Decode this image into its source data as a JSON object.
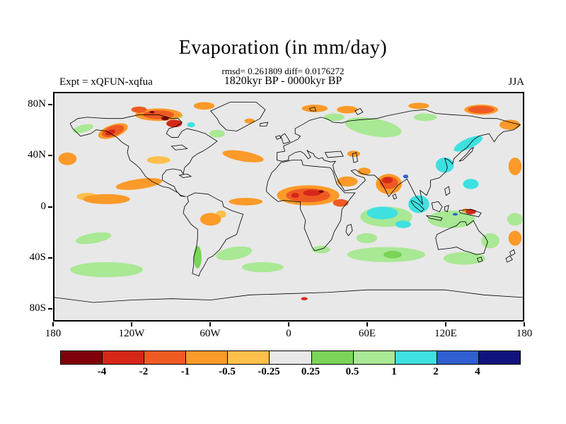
{
  "chart_data": {
    "type": "heatmap",
    "title": "Evaporation (in mm/day)",
    "stats_line": "rmsd= 0.261809 diff= 0.0176272",
    "period_line": "1820kyr BP - 0000kyr BP",
    "experiment_label": "Expt = xQFUN-xqfua",
    "season_label": "JJA",
    "x_axis": {
      "ticks": [
        "180",
        "120W",
        "60W",
        "0",
        "60E",
        "120E",
        "180"
      ],
      "lon_values": [
        -180,
        -120,
        -60,
        0,
        60,
        120,
        180
      ],
      "range": [
        -180,
        180
      ]
    },
    "y_axis": {
      "ticks": [
        "80N",
        "40N",
        "0",
        "40S",
        "80S"
      ],
      "lat_values": [
        80,
        40,
        0,
        -40,
        -80
      ],
      "range": [
        -90,
        90
      ]
    },
    "colorbar": {
      "levels": [
        "-4",
        "-2",
        "-1",
        "-0.5",
        "-0.25",
        "0.25",
        "0.5",
        "1",
        "2",
        "4"
      ],
      "colors": [
        "#7E0009",
        "#D62718",
        "#EF5A23",
        "#FB9A29",
        "#FDC04B",
        "#E8E8E8",
        "#79D457",
        "#A9E894",
        "#3FE0E0",
        "#2F5FD0",
        "#12127E"
      ],
      "units": "mm/day"
    },
    "background_color": "#E8E8E8",
    "anomaly_blobs": [
      [
        65,
        63,
        22,
        7,
        10,
        7
      ],
      [
        105,
        71,
        9,
        3,
        0,
        7
      ],
      [
        35,
        71,
        8,
        3,
        0,
        7
      ],
      [
        -158,
        62,
        8,
        3,
        -15,
        7
      ],
      [
        -55,
        58,
        6,
        3,
        0,
        7
      ],
      [
        75,
        -8,
        20,
        8,
        0,
        7
      ],
      [
        -42,
        -37,
        14,
        5,
        -10,
        7
      ],
      [
        -20,
        -48,
        16,
        4,
        0,
        7
      ],
      [
        75,
        -38,
        30,
        6,
        0,
        7
      ],
      [
        135,
        -41,
        16,
        5,
        0,
        7
      ],
      [
        -140,
        -50,
        28,
        6,
        0,
        7
      ],
      [
        -150,
        -25,
        14,
        4,
        -10,
        7
      ],
      [
        125,
        -10,
        18,
        7,
        0,
        7
      ],
      [
        155,
        -27,
        7,
        6,
        0,
        7
      ],
      [
        174,
        -10,
        6,
        5,
        0,
        7
      ],
      [
        60,
        -25,
        8,
        4,
        0,
        7
      ],
      [
        25,
        -34,
        7,
        3,
        0,
        7
      ],
      [
        -85,
        72,
        4,
        2,
        0,
        7
      ],
      [
        -70,
        -40,
        3,
        9,
        0,
        6
      ],
      [
        80,
        -38,
        7,
        3,
        0,
        6
      ],
      [
        72,
        -5,
        12,
        5,
        0,
        8
      ],
      [
        100,
        2,
        8,
        7,
        0,
        8
      ],
      [
        138,
        50,
        12,
        4,
        -25,
        8
      ],
      [
        120,
        33,
        7,
        6,
        0,
        8
      ],
      [
        88,
        -14,
        6,
        3,
        0,
        8
      ],
      [
        140,
        18,
        6,
        4,
        0,
        8
      ],
      [
        -75,
        65,
        3,
        2,
        0,
        8
      ],
      [
        -100,
        37,
        9,
        3,
        0,
        4
      ],
      [
        -155,
        8,
        8,
        3,
        0,
        4
      ],
      [
        -52,
        -6,
        4,
        3,
        0,
        4
      ],
      [
        -100,
        73,
        18,
        5,
        0,
        3
      ],
      [
        -65,
        80,
        8,
        3,
        0,
        3
      ],
      [
        -135,
        60,
        12,
        5,
        -20,
        3
      ],
      [
        20,
        78,
        10,
        3,
        0,
        3
      ],
      [
        45,
        77,
        8,
        3,
        0,
        3
      ],
      [
        100,
        80,
        8,
        2.5,
        0,
        3
      ],
      [
        148,
        77,
        13,
        4,
        0,
        3
      ],
      [
        170,
        65,
        8,
        4,
        0,
        3
      ],
      [
        -170,
        38,
        7,
        5,
        0,
        3
      ],
      [
        -115,
        18,
        18,
        4,
        -8,
        3
      ],
      [
        -140,
        6,
        18,
        4,
        0,
        3
      ],
      [
        -35,
        40,
        16,
        4,
        10,
        3
      ],
      [
        -33,
        4,
        13,
        3,
        0,
        3
      ],
      [
        -60,
        -10,
        8,
        5,
        0,
        3
      ],
      [
        15,
        9,
        24,
        8,
        0,
        3
      ],
      [
        45,
        20,
        8,
        4,
        0,
        3
      ],
      [
        58,
        28,
        5,
        3,
        0,
        3
      ],
      [
        77,
        18,
        10,
        8,
        0,
        3
      ],
      [
        174,
        32,
        5,
        7,
        0,
        3
      ],
      [
        174,
        -25,
        5,
        6,
        0,
        3
      ],
      [
        136,
        -3,
        3,
        1.5,
        0,
        3
      ],
      [
        50,
        42,
        5,
        2.5,
        0,
        3
      ],
      [
        -30,
        68,
        4,
        2,
        0,
        3
      ],
      [
        -100,
        73,
        12,
        3.5,
        0,
        2
      ],
      [
        -115,
        77,
        6,
        2.5,
        0,
        2
      ],
      [
        -135,
        60,
        9,
        4,
        -20,
        2
      ],
      [
        148,
        77,
        10,
        3,
        0,
        2
      ],
      [
        15,
        9,
        17,
        5.5,
        0,
        2
      ],
      [
        40,
        3,
        6,
        3,
        0,
        2
      ],
      [
        77,
        19,
        7,
        5,
        0,
        2
      ],
      [
        -88,
        66,
        6,
        3,
        0,
        1
      ],
      [
        -137,
        59,
        4,
        2,
        -20,
        1
      ],
      [
        18,
        11,
        7,
        2.5,
        0,
        1
      ],
      [
        5,
        9,
        3,
        2,
        0,
        1
      ],
      [
        76,
        21,
        4,
        2.5,
        0,
        1
      ],
      [
        140,
        -4,
        4,
        2,
        0,
        1
      ],
      [
        12,
        -73,
        2.5,
        1.2,
        0,
        1
      ],
      [
        -95,
        70,
        3,
        1.5,
        0,
        0
      ],
      [
        -105,
        75,
        2,
        1,
        0,
        0
      ],
      [
        25,
        12,
        2,
        1,
        0,
        0
      ],
      [
        90,
        24,
        2,
        1.5,
        0,
        9
      ],
      [
        128,
        -6,
        2,
        1,
        0,
        9
      ]
    ],
    "coastlines": [
      "M24,48 L36,40 L50,38 L80,40 L104,40 L130,34 L160,34 L180,40 L190,40 L196,46 L188,52 L176,56 L172,64 L180,70 L190,70 L196,60 L204,56 L220,60 L232,64 L250,76 L240,84 L228,92 L220,96 L212,102 L208,110 L200,118 L198,128 L194,122 L182,120 L172,122 L166,130 L166,138 L176,144 L184,148 L188,156 L194,162 L202,164 L194,163 L190,158 L176,150 L166,148 L150,140 L140,132 L132,120 L126,114 L116,106 L112,94 L114,84 L104,78 L96,70 L80,60 L64,58 L56,64 L40,68 L28,56 Z",
      "M240,28 L270,14 L310,14 L324,26 L316,40 L280,60 L264,58 L254,48 L250,40 Z",
      "M204,164 L216,158 L236,160 L250,168 L258,172 L260,180 L272,186 L290,192 L286,204 L280,224 L264,232 L254,248 L244,258 L236,262 L230,274 L224,284 L222,290 L212,286 L214,272 L214,260 L218,246 L220,230 L220,216 L210,208 L202,196 L198,190 L200,180 L206,172 Z",
      "M348,110 L366,106 L380,106 L382,114 L400,116 L424,118 L428,124 L434,144 L446,158 L462,158 L442,184 L440,202 L430,220 L426,232 L414,246 L400,250 L396,244 L388,224 L384,214 L386,202 L378,184 L378,172 L372,172 L352,170 L344,172 L334,164 L326,156 L326,150 L328,140 L334,126 L340,120 Z",
      "M342,106 L342,94 L354,92 L352,84 L362,79 L374,73 L378,68 L370,64 L370,56 L384,48 L392,43 L410,38 L420,41 L428,46 L442,47 L452,44 L470,42 L496,40 L510,36 L548,28 L570,26 L586,32 L610,34 L640,36 L660,40 L680,40 L700,46 L716,50 L706,58 L690,61 L682,68 L676,77 L668,64 L652,68 L644,74 L634,86 L624,94 L614,104 L612,112 L606,106 L600,103 L604,118 L602,124 L592,134 L578,138 L578,148 L572,162 L562,154 L566,176 L556,164 L548,148 L542,136 L536,140 L528,146 L520,156 L514,164 L506,148 L500,138 L492,130 L482,130 L472,127 L462,121 L456,123 L464,130 L470,132 L476,134 L478,138 L468,148 L464,152 L450,154 L446,155 L436,138 L430,124 L428,114 L432,108 L424,109 L414,106 L412,102 L406,104 L400,100 L398,96 L390,92 L388,90 L392,98 L394,101 L390,104 L384,96 L378,92 L370,94 L360,100 L360,106 L350,108 Z",
      "M352,80 L362,77 L358,70 L354,64 L348,68 L350,74 Z",
      "M342,73 L348,71 L346,67 L340,69 Z",
      "M316,48 L328,46 L326,52 L316,52 Z",
      "M622,108 L626,104 L634,96 L640,88 L644,86 L642,92 L634,100 L628,106 Z",
      "M450,210 L456,208 L458,218 L452,226 L448,220 Z",
      "M550,170 L560,176 L568,184 L564,188 L554,180 L548,172 Z",
      "M572,194 L588,196 L596,198 L594,202 L576,198 Z",
      "M580,174 L590,172 L596,180 L592,188 L582,184 Z",
      "M600,180 L606,178 L604,188 L600,186 Z",
      "M622,186 L640,184 L656,190 L652,196 L634,192 L624,190 Z",
      "M600,152 L606,148 L608,158 L602,162 Z",
      "M586,230 L588,224 L604,216 L618,210 L624,204 L632,204 L634,210 L644,202 L652,218 L662,228 L666,236 L660,254 L648,256 L638,252 L630,250 L618,244 L608,246 L590,248 Z",
      "M650,262 L656,260 L658,266 L652,268 Z",
      "M700,252 L706,248 L708,254 L702,258 Z",
      "M694,262 L700,258 L704,264 L696,268 Z",
      "M0,324 L60,332 L120,328 L180,326 L240,328 L300,320 L360,318 L420,316 L480,312 L540,312 L600,312 L660,320 L720,324",
      "M192,130 L204,128 L210,132 L198,134 Z",
      "M520,162 L524,160 L526,166 L522,168 Z",
      "M392,24 L400,22 L402,28 L394,28 Z",
      "M462,28 L470,24 L474,30 L466,34 Z",
      "M458,96 L464,94 L466,108 L460,110 Z",
      "M416,94 L440,92 L444,100 L420,102 Z",
      "M180,84 L196,82 L204,88 L186,90 Z"
    ]
  }
}
